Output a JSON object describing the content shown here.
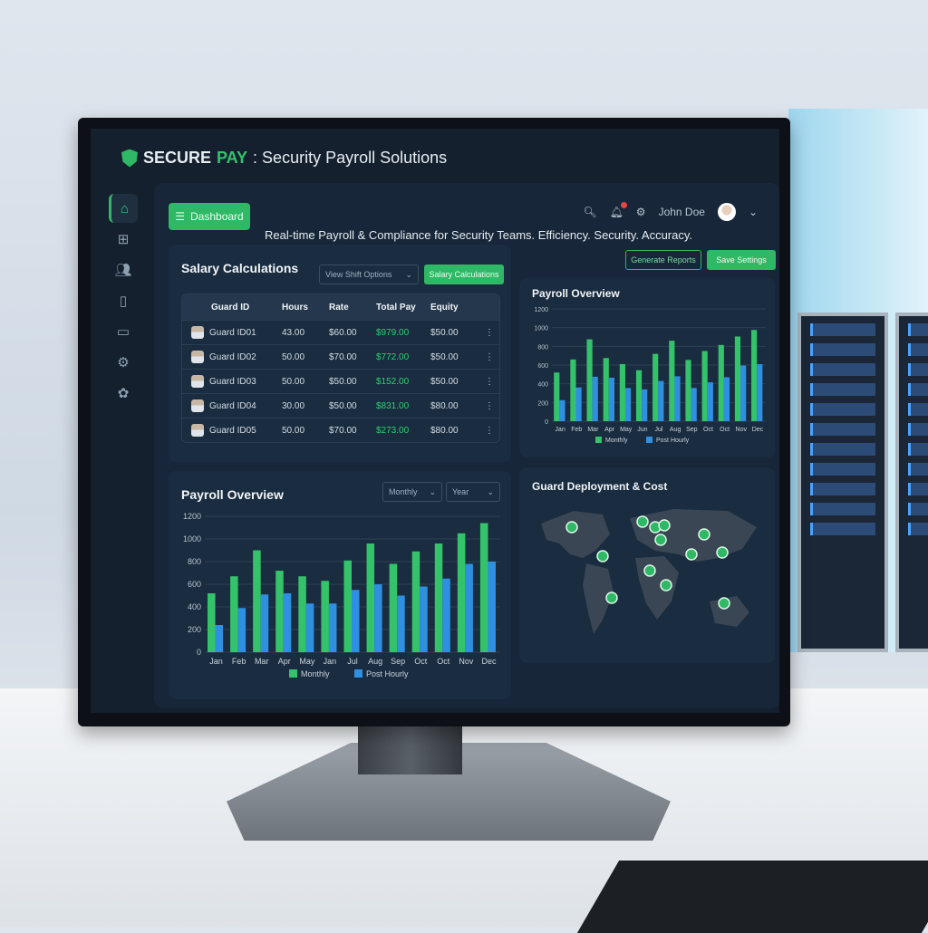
{
  "app": {
    "brand_secure": "SECURE",
    "brand_pay": "PAY",
    "brand_suffix": ": Security Payroll Solutions"
  },
  "sidebar": {
    "items": [
      {
        "icon": "home-icon"
      },
      {
        "icon": "grid-icon"
      },
      {
        "icon": "users-icon"
      },
      {
        "icon": "document-icon"
      },
      {
        "icon": "card-icon"
      },
      {
        "icon": "gear-icon"
      },
      {
        "icon": "support-icon"
      }
    ]
  },
  "header": {
    "dashboard_label": "Dashboard",
    "tagline": "Real-time Payroll & Compliance for Security Teams. Efficiency. Security. Accuracy.",
    "user_name": "John Doe",
    "notification_badge_color": "#e64545"
  },
  "actions": {
    "secondary": "Generate Reports",
    "primary": "Save Settings"
  },
  "salary": {
    "title": "Salary Calculations",
    "dropdown": "View Shift Options",
    "button": "Salary Calculations",
    "columns": [
      "Guard ID",
      "Hours",
      "Rate",
      "Total Pay",
      "Equity"
    ],
    "rows": [
      [
        "Guard ID01",
        "43.00",
        "$60.00",
        "$979.00",
        "$50.00"
      ],
      [
        "Guard ID02",
        "50.00",
        "$70.00",
        "$772.00",
        "$50.00"
      ],
      [
        "Guard ID03",
        "50.00",
        "$50.00",
        "$152.00",
        "$50.00"
      ],
      [
        "Guard ID04",
        "30.00",
        "$50.00",
        "$831.00",
        "$80.00"
      ],
      [
        "Guard ID05",
        "50.00",
        "$70.00",
        "$273.00",
        "$80.00"
      ]
    ]
  },
  "map": {
    "title": "Guard Deployment & Cost"
  },
  "colors": {
    "accent": "#2fb865",
    "series1": "#34c36b",
    "series2": "#2f8fe0",
    "background": "#14202e"
  },
  "chart_data": [
    {
      "type": "bar",
      "title": "Payroll Overview",
      "ylim": [
        0,
        1200
      ],
      "yticks": [
        0,
        200,
        400,
        600,
        800,
        1000,
        1200
      ],
      "grid": true,
      "legend": "bottom",
      "categories": [
        "Jan",
        "Feb",
        "Mar",
        "Apr",
        "May",
        "Jun",
        "Jul",
        "Aug",
        "Sep",
        "Oct",
        "Oct",
        "Nov",
        "Dec"
      ],
      "series": [
        {
          "name": "Monthly",
          "values": [
            520,
            660,
            875,
            675,
            610,
            545,
            720,
            860,
            655,
            750,
            815,
            905,
            975
          ]
        },
        {
          "name": "Post Hourly",
          "values": [
            225,
            360,
            475,
            465,
            355,
            340,
            430,
            480,
            355,
            415,
            470,
            595,
            610
          ]
        }
      ]
    },
    {
      "type": "bar",
      "title": "Payroll Overview",
      "ylim": [
        0,
        1200
      ],
      "yticks": [
        0,
        200,
        400,
        600,
        800,
        1000,
        1200
      ],
      "grid": true,
      "legend": "bottom",
      "filters": [
        "Monthly",
        "Year"
      ],
      "categories": [
        "Jan",
        "Feb",
        "Mar",
        "Apr",
        "May",
        "Jan",
        "Jul",
        "Aug",
        "Sep",
        "Oct",
        "Oct",
        "Nov",
        "Dec"
      ],
      "series": [
        {
          "name": "Monthly",
          "values": [
            520,
            670,
            900,
            720,
            670,
            630,
            810,
            960,
            780,
            890,
            960,
            1050,
            1140
          ]
        },
        {
          "name": "Post Hourly",
          "values": [
            240,
            390,
            510,
            520,
            430,
            430,
            550,
            600,
            500,
            580,
            650,
            780,
            800
          ]
        }
      ]
    }
  ]
}
